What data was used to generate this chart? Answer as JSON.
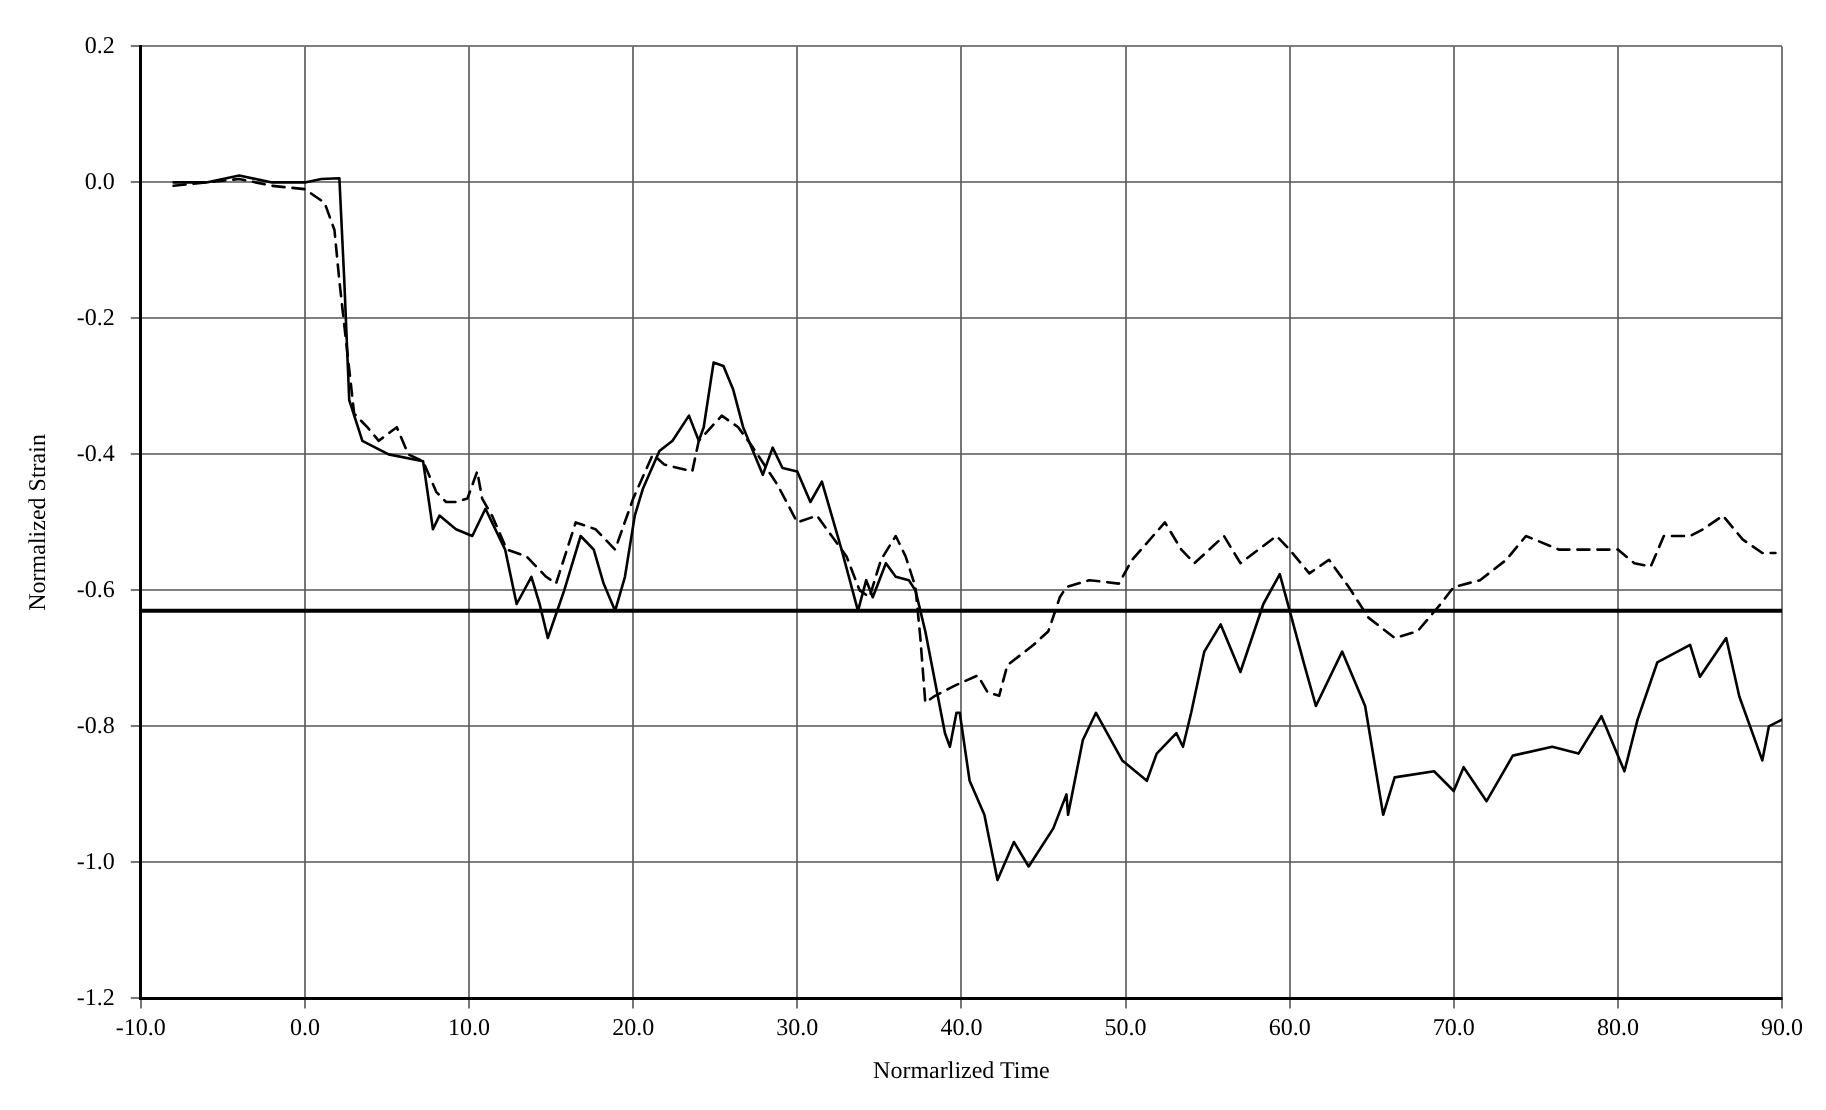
{
  "chart_data": {
    "type": "line",
    "xlabel": "Normarlized Time",
    "ylabel": "Normalized Strain",
    "xlim": [
      -10,
      90
    ],
    "xticks": [
      {
        "value": -10,
        "label": "-10.0"
      },
      {
        "value": 0,
        "label": "0.0"
      },
      {
        "value": 10,
        "label": "10.0"
      },
      {
        "value": 20,
        "label": "20.0"
      },
      {
        "value": 30,
        "label": "30.0"
      },
      {
        "value": 40,
        "label": "40.0"
      },
      {
        "value": 50,
        "label": "50.0"
      },
      {
        "value": 60,
        "label": "60.0"
      },
      {
        "value": 70,
        "label": "70.0"
      },
      {
        "value": 80,
        "label": "80.0"
      },
      {
        "value": 90,
        "label": "90.0"
      }
    ],
    "ylim": [
      -1.2,
      0.2
    ],
    "yticks": [
      0.2,
      {
        "value": 0,
        "label": "0.0"
      },
      -0.2,
      -0.4,
      -0.6,
      -0.8,
      {
        "value": -1,
        "label": "-1.0"
      },
      -1.2
    ],
    "grid": true,
    "legend": false,
    "marker": "none",
    "ref_lines": [
      {
        "axis": "y",
        "value": -0.63,
        "color": "#000000",
        "line_style": "solid"
      }
    ],
    "series": [
      {
        "color": "#000000",
        "line_style": "solid",
        "x": [
          -8,
          -6,
          -4,
          -2,
          0,
          1,
          2.1,
          2.4,
          2.7,
          3.5,
          5.1,
          7.2,
          7.8,
          8.2,
          9.2,
          10.2,
          11,
          12.2,
          12.9,
          13.8,
          14.3,
          14.8,
          15.8,
          16.8,
          17.6,
          18.2,
          18.9,
          19.5,
          20.1,
          20.6,
          21.6,
          22.4,
          23.4,
          24,
          24.3,
          24.9,
          25.5,
          26.1,
          26.7,
          27.9,
          28.5,
          29.1,
          30,
          30.8,
          31.5,
          32.1,
          32.7,
          33.7,
          34.2,
          34.6,
          35.4,
          36,
          36.8,
          37.2,
          37.8,
          38.4,
          39,
          39.3,
          39.7,
          39.9,
          40.5,
          41.4,
          42.2,
          43.2,
          44.1,
          45.6,
          46.4,
          46.5,
          47.4,
          48.2,
          49.8,
          51.3,
          51.9,
          53.1,
          53.5,
          54,
          54.8,
          55.8,
          57,
          58.4,
          59.4,
          60.9,
          61.6,
          63.2,
          64.6,
          65.7,
          66.4,
          68.8,
          70,
          70.6,
          72,
          73.6,
          76,
          77.6,
          79,
          80.4,
          81.2,
          82.4,
          84.4,
          85,
          86.6,
          87.4,
          88.8,
          89.2,
          90
        ],
        "values": [
          0,
          0,
          0.01,
          0,
          0,
          0.005,
          0.006,
          -0.145,
          -0.32,
          -0.38,
          -0.4,
          -0.41,
          -0.51,
          -0.49,
          -0.51,
          -0.52,
          -0.48,
          -0.54,
          -0.62,
          -0.58,
          -0.62,
          -0.67,
          -0.6,
          -0.52,
          -0.54,
          -0.59,
          -0.63,
          -0.58,
          -0.49,
          -0.45,
          -0.395,
          -0.38,
          -0.343,
          -0.38,
          -0.36,
          -0.265,
          -0.27,
          -0.305,
          -0.36,
          -0.43,
          -0.39,
          -0.42,
          -0.425,
          -0.47,
          -0.44,
          -0.49,
          -0.54,
          -0.63,
          -0.585,
          -0.61,
          -0.56,
          -0.58,
          -0.585,
          -0.6,
          -0.66,
          -0.735,
          -0.81,
          -0.83,
          -0.78,
          -0.78,
          -0.88,
          -0.93,
          -1.026,
          -0.97,
          -1.006,
          -0.95,
          -0.9,
          -0.93,
          -0.82,
          -0.78,
          -0.85,
          -0.88,
          -0.84,
          -0.81,
          -0.83,
          -0.78,
          -0.69,
          -0.65,
          -0.72,
          -0.62,
          -0.576,
          -0.71,
          -0.77,
          -0.69,
          -0.77,
          -0.93,
          -0.875,
          -0.866,
          -0.895,
          -0.86,
          -0.91,
          -0.843,
          -0.83,
          -0.84,
          -0.785,
          -0.866,
          -0.79,
          -0.706,
          -0.68,
          -0.727,
          -0.67,
          -0.756,
          -0.85,
          -0.8,
          -0.79
        ]
      },
      {
        "color": "#000000",
        "line_style": "dashed",
        "x": [
          -8,
          -6,
          -4,
          -2,
          0,
          1.2,
          1.8,
          2.1,
          2.4,
          3,
          3.8,
          4.5,
          5.6,
          6.3,
          7.2,
          8,
          8.6,
          9.2,
          9.9,
          10.5,
          10.8,
          11.4,
          12.3,
          13.5,
          14.7,
          15.3,
          16.5,
          17.7,
          18.9,
          20,
          21.2,
          21.9,
          23.6,
          24,
          25.4,
          26.4,
          27.3,
          28.8,
          30,
          31.2,
          32.1,
          33,
          33.8,
          34.4,
          35.1,
          36,
          36.6,
          37.2,
          37.5,
          37.8,
          38.4,
          39.6,
          41,
          41.6,
          42.3,
          42.8,
          44.4,
          45.3,
          46,
          46.4,
          47.8,
          49.6,
          50.4,
          52.4,
          53.4,
          54.2,
          56,
          57,
          59.2,
          60,
          61.2,
          62.4,
          63.6,
          64.8,
          66.4,
          67.8,
          69.2,
          70,
          71.6,
          73.2,
          74.4,
          76.4,
          78,
          80,
          81,
          82,
          82.8,
          84.4,
          85.2,
          86.4,
          87.6,
          88.8,
          89.6
        ],
        "values": [
          -0.005,
          0,
          0.005,
          -0.005,
          -0.01,
          -0.03,
          -0.07,
          -0.145,
          -0.21,
          -0.34,
          -0.36,
          -0.38,
          -0.36,
          -0.4,
          -0.41,
          -0.455,
          -0.47,
          -0.47,
          -0.465,
          -0.425,
          -0.465,
          -0.49,
          -0.54,
          -0.55,
          -0.58,
          -0.59,
          -0.5,
          -0.51,
          -0.54,
          -0.465,
          -0.4,
          -0.415,
          -0.425,
          -0.38,
          -0.343,
          -0.36,
          -0.39,
          -0.445,
          -0.5,
          -0.49,
          -0.52,
          -0.55,
          -0.6,
          -0.61,
          -0.555,
          -0.52,
          -0.55,
          -0.595,
          -0.67,
          -0.765,
          -0.755,
          -0.74,
          -0.725,
          -0.75,
          -0.755,
          -0.71,
          -0.68,
          -0.66,
          -0.61,
          -0.595,
          -0.585,
          -0.59,
          -0.555,
          -0.5,
          -0.54,
          -0.56,
          -0.52,
          -0.56,
          -0.52,
          -0.54,
          -0.575,
          -0.555,
          -0.595,
          -0.64,
          -0.67,
          -0.66,
          -0.62,
          -0.595,
          -0.585,
          -0.555,
          -0.52,
          -0.54,
          -0.54,
          -0.54,
          -0.56,
          -0.565,
          -0.52,
          -0.52,
          -0.51,
          -0.49,
          -0.525,
          -0.545,
          -0.545
        ]
      }
    ]
  }
}
